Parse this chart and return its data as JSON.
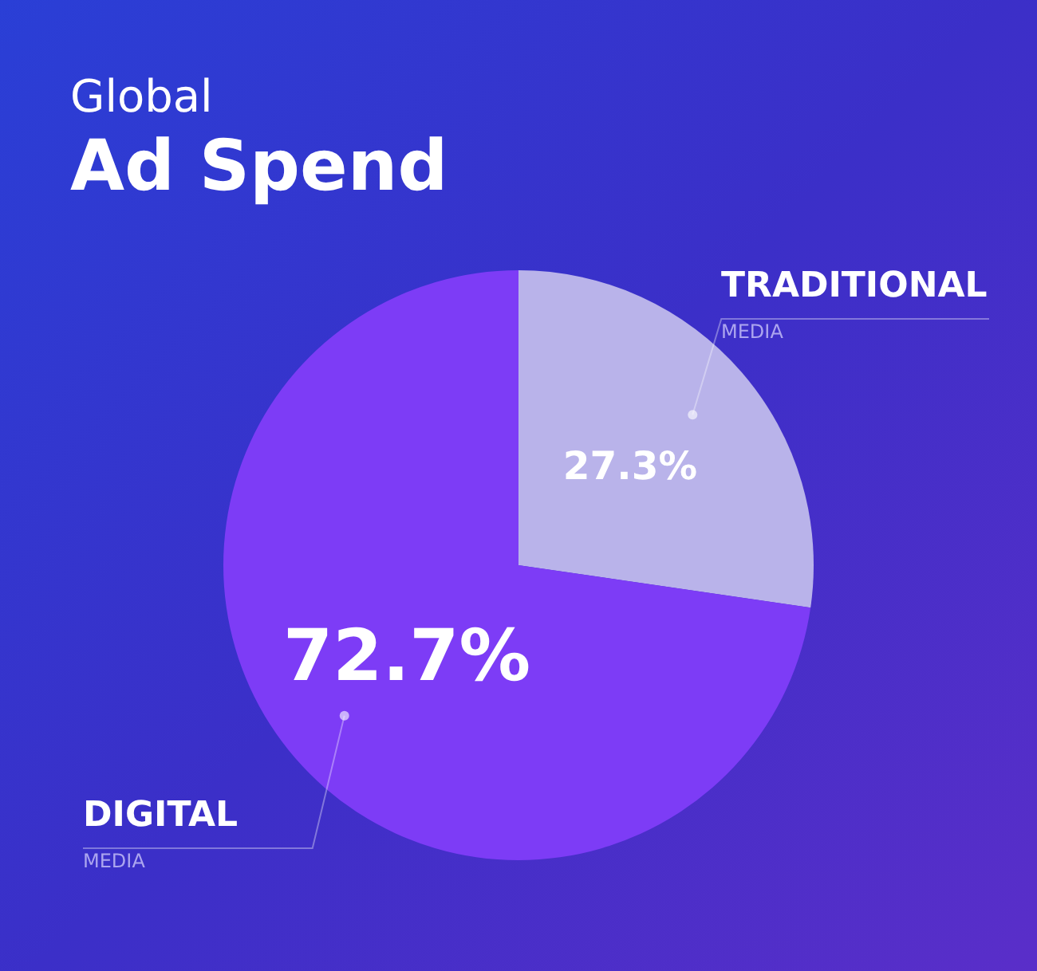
{
  "chart_data": {
    "type": "pie",
    "title": "Global",
    "subtitle": "Ad Spend",
    "categories": [
      "TRADITIONAL MEDIA",
      "DIGITAL MEDIA"
    ],
    "values": [
      27.3,
      72.7
    ],
    "colors": [
      "#b9b3ea",
      "#7d3cf6"
    ],
    "value_labels": [
      "27.3%",
      "72.7%"
    ],
    "legend": false
  }
}
